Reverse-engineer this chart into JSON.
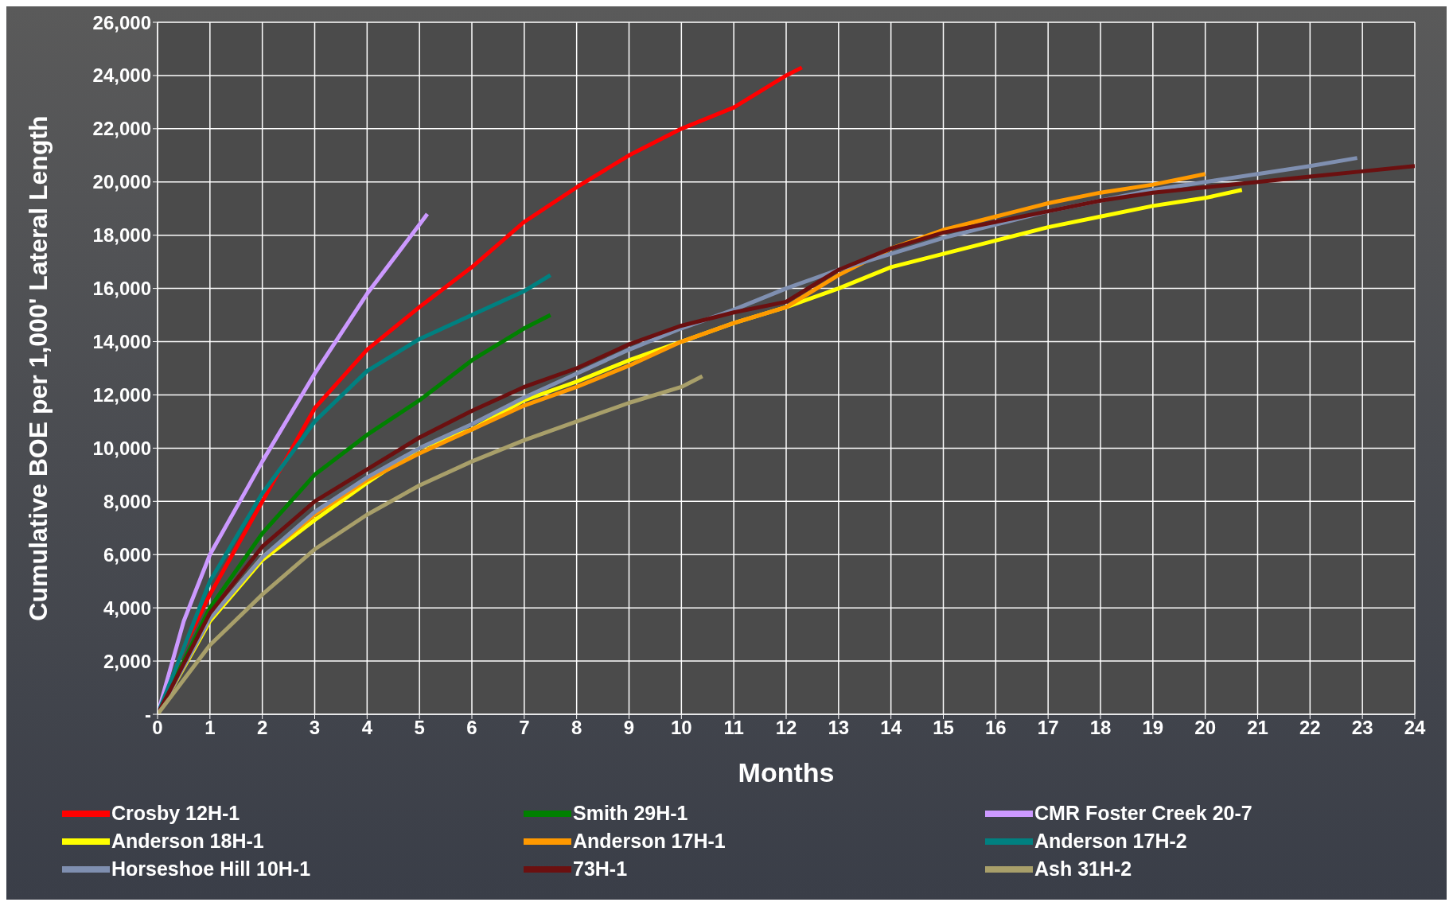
{
  "chart_data": {
    "type": "line",
    "xlabel": "Months",
    "ylabel": "Cumulative BOE per 1,000' Lateral Length",
    "xlim": [
      0,
      24
    ],
    "xticks": [
      0,
      1,
      2,
      3,
      4,
      5,
      6,
      7,
      8,
      9,
      10,
      11,
      12,
      13,
      14,
      15,
      16,
      17,
      18,
      19,
      20,
      21,
      22,
      23,
      24
    ],
    "ylim": [
      0,
      26000
    ],
    "yticks": [
      {
        "value": 0,
        "label": "-"
      },
      {
        "value": 2000,
        "label": "2,000"
      },
      {
        "value": 4000,
        "label": "4,000"
      },
      {
        "value": 6000,
        "label": "6,000"
      },
      {
        "value": 8000,
        "label": "8,000"
      },
      {
        "value": 10000,
        "label": "10,000"
      },
      {
        "value": 12000,
        "label": "12,000"
      },
      {
        "value": 14000,
        "label": "14,000"
      },
      {
        "value": 16000,
        "label": "16,000"
      },
      {
        "value": 18000,
        "label": "18,000"
      },
      {
        "value": 20000,
        "label": "20,000"
      },
      {
        "value": 22000,
        "label": "22,000"
      },
      {
        "value": 24000,
        "label": "24,000"
      },
      {
        "value": 26000,
        "label": "26,000"
      }
    ],
    "grid": true,
    "legend": "bottom",
    "line_style": "solid",
    "series": [
      {
        "name": "Crosby 12H-1",
        "color": "#ff0000",
        "x": [
          0,
          0.5,
          1,
          2,
          3,
          4,
          5,
          6,
          7,
          8,
          9,
          10,
          11,
          12,
          12.3
        ],
        "values": [
          0,
          2500,
          4500,
          8000,
          11500,
          13700,
          15300,
          16800,
          18500,
          19800,
          21000,
          22000,
          22800,
          24000,
          24300
        ]
      },
      {
        "name": "Smith 29H-1",
        "color": "#008000",
        "x": [
          0,
          1,
          2,
          3,
          4,
          5,
          6,
          7,
          7.5
        ],
        "values": [
          0,
          4000,
          6800,
          9000,
          10500,
          11800,
          13300,
          14500,
          15000
        ]
      },
      {
        "name": "CMR Foster Creek 20-7",
        "color": "#cc99ff",
        "x": [
          0,
          0.5,
          1,
          2,
          3,
          4,
          5,
          5.15
        ],
        "values": [
          0,
          3500,
          6000,
          9500,
          12800,
          15800,
          18400,
          18800
        ]
      },
      {
        "name": "Anderson 18H-1",
        "color": "#ffff00",
        "x": [
          0,
          1,
          2,
          3,
          4,
          5,
          6,
          7,
          8,
          9,
          10,
          11,
          12,
          13,
          14,
          15,
          16,
          17,
          18,
          19,
          20,
          20.7
        ],
        "values": [
          0,
          3500,
          5800,
          7300,
          8700,
          10000,
          10700,
          11800,
          12500,
          13300,
          14000,
          14700,
          15300,
          16000,
          16800,
          17300,
          17800,
          18300,
          18700,
          19100,
          19400,
          19700
        ]
      },
      {
        "name": "Anderson 17H-1",
        "color": "#ff9900",
        "x": [
          0,
          1,
          2,
          3,
          4,
          5,
          6,
          7,
          8,
          9,
          10,
          11,
          12,
          13,
          14,
          15,
          16,
          17,
          18,
          19,
          20
        ],
        "values": [
          0,
          3600,
          5900,
          7500,
          8800,
          9800,
          10700,
          11600,
          12300,
          13100,
          14000,
          14700,
          15300,
          16500,
          17500,
          18200,
          18700,
          19200,
          19600,
          19900,
          20300
        ]
      },
      {
        "name": "Anderson 17H-2",
        "color": "#008080",
        "x": [
          0,
          1,
          2,
          3,
          4,
          5,
          6,
          7,
          7.5
        ],
        "values": [
          0,
          5000,
          8300,
          11000,
          12900,
          14100,
          15000,
          15900,
          16500
        ]
      },
      {
        "name": "Horseshoe Hill 10H-1",
        "color": "#7f8fb0",
        "x": [
          0,
          1,
          2,
          3,
          4,
          5,
          6,
          7,
          8,
          9,
          10,
          11,
          12,
          13,
          14,
          15,
          16,
          17,
          18,
          19,
          20,
          21,
          22,
          22.9
        ],
        "values": [
          0,
          3600,
          5900,
          7600,
          8900,
          10000,
          10900,
          11900,
          12800,
          13700,
          14500,
          15200,
          16000,
          16700,
          17300,
          17900,
          18400,
          18900,
          19300,
          19700,
          20000,
          20300,
          20600,
          20900
        ]
      },
      {
        "name": "73H-1",
        "color": "#6b1010",
        "x": [
          0,
          1,
          2,
          3,
          4,
          5,
          6,
          7,
          8,
          9,
          10,
          11,
          12,
          13,
          14,
          15,
          16,
          17,
          18,
          19,
          20,
          21,
          22,
          23,
          24
        ],
        "values": [
          0,
          3800,
          6300,
          8000,
          9200,
          10400,
          11400,
          12300,
          13000,
          13900,
          14600,
          15100,
          15500,
          16700,
          17500,
          18100,
          18500,
          18900,
          19300,
          19600,
          19800,
          20000,
          20200,
          20400,
          20600
        ]
      },
      {
        "name": "Ash 31H-2",
        "color": "#a89f6a",
        "x": [
          0,
          1,
          2,
          3,
          4,
          5,
          6,
          7,
          8,
          9,
          10,
          10.4
        ],
        "values": [
          0,
          2600,
          4500,
          6200,
          7500,
          8600,
          9500,
          10300,
          11000,
          11700,
          12300,
          12700
        ]
      }
    ]
  }
}
